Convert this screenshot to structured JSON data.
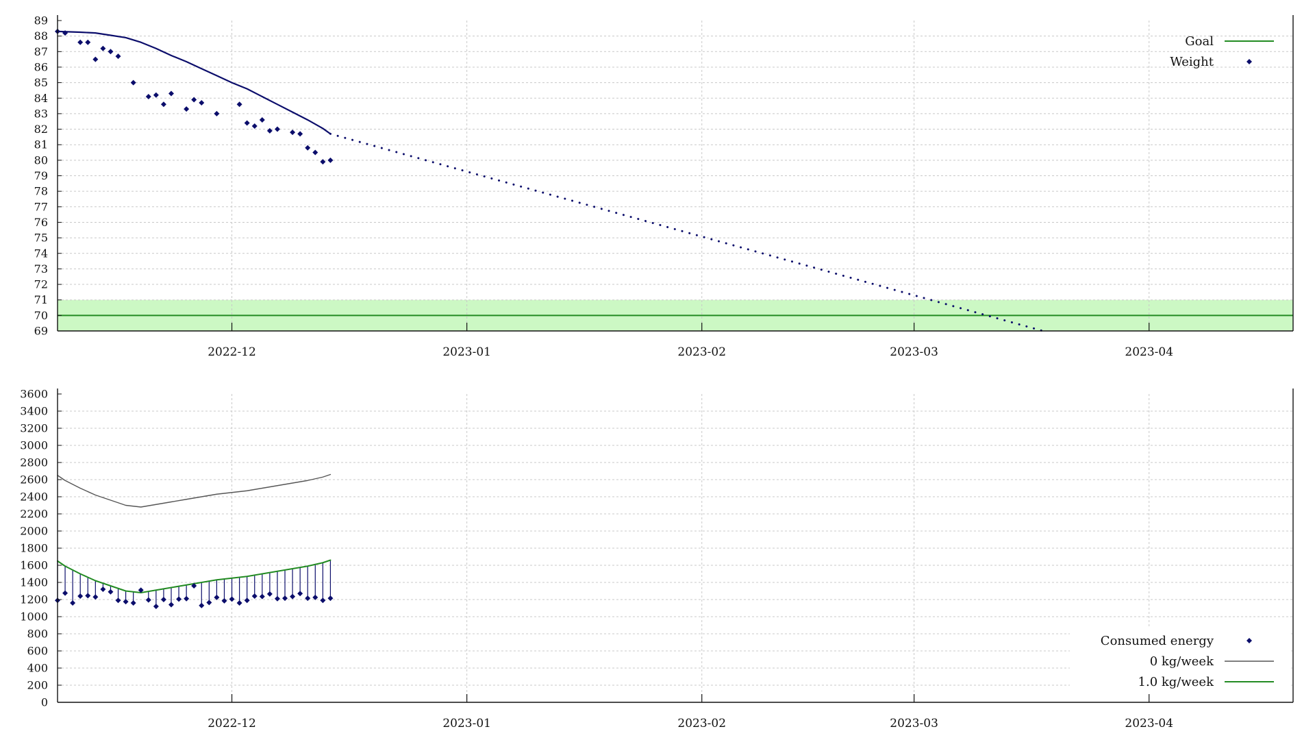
{
  "colors": {
    "weight": "#0b0d6b",
    "goal": "#228b22",
    "goal_band": "#ccf8c4",
    "zero_line": "#555555",
    "grid": "#c8c8c8",
    "axis": "#111111"
  },
  "chart_data": [
    {
      "type": "scatter",
      "title": "",
      "xlabel": "",
      "ylabel": "",
      "x_range": [
        "2022-11-08",
        "2023-04-20"
      ],
      "ylim": [
        69,
        89
      ],
      "yticks": [
        69,
        70,
        71,
        72,
        73,
        74,
        75,
        76,
        77,
        78,
        79,
        80,
        81,
        82,
        83,
        84,
        85,
        86,
        87,
        88,
        89
      ],
      "xticks": [
        "2022-12",
        "2023-01",
        "2023-02",
        "2023-03",
        "2023-04"
      ],
      "xtick_dates": [
        "2022-12-01",
        "2023-01-01",
        "2023-02-01",
        "2023-03-01",
        "2023-04-01"
      ],
      "grid": true,
      "legend_position": "top-right",
      "legend": [
        {
          "label": "Goal",
          "style": "line",
          "color": "#228b22"
        },
        {
          "label": "Weight",
          "style": "point",
          "color": "#0b0d6b"
        }
      ],
      "goal": {
        "value": 70,
        "band": [
          69,
          71
        ]
      },
      "series": [
        {
          "name": "Weight",
          "style": "point",
          "points": [
            [
              "2022-11-08",
              88.3
            ],
            [
              "2022-11-09",
              88.2
            ],
            [
              "2022-11-11",
              87.6
            ],
            [
              "2022-11-12",
              87.6
            ],
            [
              "2022-11-13",
              86.5
            ],
            [
              "2022-11-14",
              87.2
            ],
            [
              "2022-11-15",
              87.0
            ],
            [
              "2022-11-16",
              86.7
            ],
            [
              "2022-11-18",
              85.0
            ],
            [
              "2022-11-20",
              84.1
            ],
            [
              "2022-11-21",
              84.2
            ],
            [
              "2022-11-22",
              83.6
            ],
            [
              "2022-11-23",
              84.3
            ],
            [
              "2022-11-25",
              83.3
            ],
            [
              "2022-11-26",
              83.9
            ],
            [
              "2022-11-27",
              83.7
            ],
            [
              "2022-11-29",
              83.0
            ],
            [
              "2022-12-02",
              83.6
            ],
            [
              "2022-12-03",
              82.4
            ],
            [
              "2022-12-04",
              82.2
            ],
            [
              "2022-12-05",
              82.6
            ],
            [
              "2022-12-06",
              81.9
            ],
            [
              "2022-12-07",
              82.0
            ],
            [
              "2022-12-09",
              81.8
            ],
            [
              "2022-12-10",
              81.7
            ],
            [
              "2022-12-11",
              80.8
            ],
            [
              "2022-12-12",
              80.5
            ],
            [
              "2022-12-13",
              79.9
            ],
            [
              "2022-12-14",
              80.0
            ]
          ]
        },
        {
          "name": "",
          "style": "line",
          "points": [
            [
              "2022-11-08",
              88.3
            ],
            [
              "2022-11-11",
              88.25
            ],
            [
              "2022-11-13",
              88.2
            ],
            [
              "2022-11-15",
              88.05
            ],
            [
              "2022-11-17",
              87.9
            ],
            [
              "2022-11-19",
              87.6
            ],
            [
              "2022-11-21",
              87.2
            ],
            [
              "2022-11-23",
              86.75
            ],
            [
              "2022-11-25",
              86.35
            ],
            [
              "2022-11-27",
              85.9
            ],
            [
              "2022-11-29",
              85.45
            ],
            [
              "2022-12-01",
              85.0
            ],
            [
              "2022-12-03",
              84.6
            ],
            [
              "2022-12-05",
              84.1
            ],
            [
              "2022-12-07",
              83.6
            ],
            [
              "2022-12-09",
              83.1
            ],
            [
              "2022-12-11",
              82.6
            ],
            [
              "2022-12-13",
              82.05
            ],
            [
              "2022-12-14",
              81.7
            ]
          ]
        },
        {
          "name": "",
          "style": "dotted",
          "points": [
            [
              "2022-12-14",
              81.7
            ],
            [
              "2023-03-18",
              69.0
            ]
          ]
        }
      ]
    },
    {
      "type": "line",
      "title": "",
      "xlabel": "",
      "ylabel": "",
      "x_range": [
        "2022-11-08",
        "2023-04-20"
      ],
      "ylim": [
        0,
        3600
      ],
      "yticks": [
        0,
        200,
        400,
        600,
        800,
        1000,
        1200,
        1400,
        1600,
        1800,
        2000,
        2200,
        2400,
        2600,
        2800,
        3000,
        3200,
        3400,
        3600
      ],
      "xticks": [
        "2022-12",
        "2023-01",
        "2023-02",
        "2023-03",
        "2023-04"
      ],
      "xtick_dates": [
        "2022-12-01",
        "2023-01-01",
        "2023-02-01",
        "2023-03-01",
        "2023-04-01"
      ],
      "grid": true,
      "legend_position": "bottom-right",
      "legend": [
        {
          "label": "Consumed energy",
          "style": "point",
          "color": "#0b0d6b"
        },
        {
          "label": "0 kg/week",
          "style": "line",
          "color": "#555555"
        },
        {
          "label": "1.0 kg/week",
          "style": "line",
          "color": "#228b22"
        }
      ],
      "series": [
        {
          "name": "Consumed energy",
          "style": "point",
          "points": [
            [
              "2022-11-08",
              1190
            ],
            [
              "2022-11-09",
              1275
            ],
            [
              "2022-11-10",
              1160
            ],
            [
              "2022-11-11",
              1240
            ],
            [
              "2022-11-12",
              1245
            ],
            [
              "2022-11-13",
              1230
            ],
            [
              "2022-11-14",
              1320
            ],
            [
              "2022-11-15",
              1290
            ],
            [
              "2022-11-16",
              1190
            ],
            [
              "2022-11-17",
              1175
            ],
            [
              "2022-11-18",
              1160
            ],
            [
              "2022-11-19",
              1310
            ],
            [
              "2022-11-20",
              1195
            ],
            [
              "2022-11-21",
              1120
            ],
            [
              "2022-11-22",
              1200
            ],
            [
              "2022-11-23",
              1140
            ],
            [
              "2022-11-24",
              1205
            ],
            [
              "2022-11-25",
              1210
            ],
            [
              "2022-11-26",
              1360
            ],
            [
              "2022-11-27",
              1130
            ],
            [
              "2022-11-28",
              1165
            ],
            [
              "2022-11-29",
              1225
            ],
            [
              "2022-11-30",
              1185
            ],
            [
              "2022-12-01",
              1205
            ],
            [
              "2022-12-02",
              1160
            ],
            [
              "2022-12-03",
              1190
            ],
            [
              "2022-12-04",
              1240
            ],
            [
              "2022-12-05",
              1235
            ],
            [
              "2022-12-06",
              1265
            ],
            [
              "2022-12-07",
              1210
            ],
            [
              "2022-12-08",
              1215
            ],
            [
              "2022-12-09",
              1235
            ],
            [
              "2022-12-10",
              1270
            ],
            [
              "2022-12-11",
              1215
            ],
            [
              "2022-12-12",
              1225
            ],
            [
              "2022-12-13",
              1190
            ],
            [
              "2022-12-14",
              1215
            ]
          ]
        },
        {
          "name": "0 kg/week",
          "style": "line",
          "points": [
            [
              "2022-11-08",
              2650
            ],
            [
              "2022-11-09",
              2590
            ],
            [
              "2022-11-11",
              2500
            ],
            [
              "2022-11-13",
              2420
            ],
            [
              "2022-11-15",
              2360
            ],
            [
              "2022-11-17",
              2300
            ],
            [
              "2022-11-19",
              2280
            ],
            [
              "2022-11-21",
              2310
            ],
            [
              "2022-11-23",
              2340
            ],
            [
              "2022-11-25",
              2370
            ],
            [
              "2022-11-27",
              2400
            ],
            [
              "2022-11-29",
              2430
            ],
            [
              "2022-12-01",
              2450
            ],
            [
              "2022-12-03",
              2470
            ],
            [
              "2022-12-05",
              2500
            ],
            [
              "2022-12-07",
              2530
            ],
            [
              "2022-12-09",
              2560
            ],
            [
              "2022-12-11",
              2590
            ],
            [
              "2022-12-13",
              2630
            ],
            [
              "2022-12-14",
              2660
            ]
          ]
        },
        {
          "name": "1.0 kg/week",
          "style": "line",
          "points": [
            [
              "2022-11-08",
              1650
            ],
            [
              "2022-11-09",
              1590
            ],
            [
              "2022-11-11",
              1500
            ],
            [
              "2022-11-13",
              1420
            ],
            [
              "2022-11-15",
              1360
            ],
            [
              "2022-11-17",
              1300
            ],
            [
              "2022-11-19",
              1280
            ],
            [
              "2022-11-21",
              1310
            ],
            [
              "2022-11-23",
              1340
            ],
            [
              "2022-11-25",
              1370
            ],
            [
              "2022-11-27",
              1400
            ],
            [
              "2022-11-29",
              1430
            ],
            [
              "2022-12-01",
              1450
            ],
            [
              "2022-12-03",
              1470
            ],
            [
              "2022-12-05",
              1500
            ],
            [
              "2022-12-07",
              1530
            ],
            [
              "2022-12-09",
              1560
            ],
            [
              "2022-12-11",
              1590
            ],
            [
              "2022-12-13",
              1630
            ],
            [
              "2022-12-14",
              1660
            ]
          ]
        }
      ]
    }
  ]
}
